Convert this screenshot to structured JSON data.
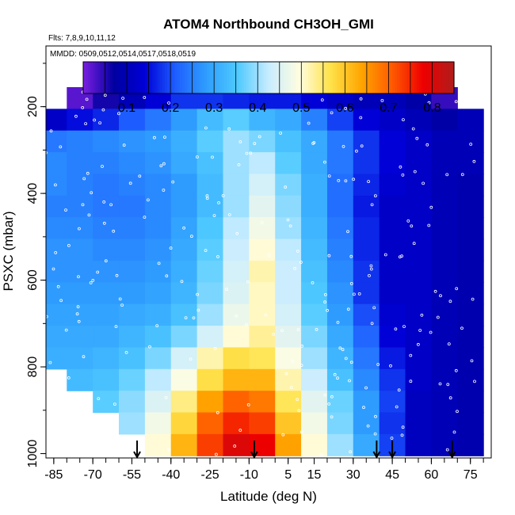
{
  "chart_data": {
    "type": "heatmap",
    "title": "ATOM4 Northbound CH3OH_GMI",
    "flights_text": "Flts: 7,8,9,10,11,12",
    "mmdd_text": "MMDD: 0509,0512,0514,0517,0518,0519",
    "xlabel": "Latitude (deg N)",
    "ylabel": "PSXC (mbar)",
    "x_ticks": [
      -85,
      -70,
      -55,
      -40,
      -25,
      -10,
      5,
      15,
      30,
      45,
      60,
      75
    ],
    "x_tick_labels": [
      "-85",
      "-70",
      "-55",
      "-40",
      "-25",
      "-10",
      "5",
      "15",
      "30",
      "45",
      "60",
      "75"
    ],
    "y_ticks": [
      200,
      400,
      600,
      800,
      1000
    ],
    "y_tick_labels": [
      "200",
      "400",
      "600",
      "800",
      "1000"
    ],
    "xlim": [
      -88,
      83
    ],
    "ylim": [
      1010,
      60
    ],
    "colorbar": {
      "range": [
        0.0,
        0.85
      ],
      "ticks": [
        0.1,
        0.2,
        0.3,
        0.4,
        0.5,
        0.6,
        0.7,
        0.8
      ],
      "tick_labels": [
        "0.1",
        "0.2",
        "0.3",
        "0.4",
        "0.5",
        "0.6",
        "0.7",
        "0.8"
      ],
      "colors": [
        "#7b1fe0",
        "#0000a0",
        "#0000d8",
        "#1e5fff",
        "#2f9fff",
        "#4fcaff",
        "#c8ecff",
        "#fffde0",
        "#ffe24a",
        "#ffa500",
        "#ff5a00",
        "#ee0000",
        "#b01c1c"
      ]
    },
    "pressure_levels": [
      180,
      230,
      280,
      330,
      380,
      430,
      480,
      530,
      580,
      630,
      680,
      730,
      780,
      830,
      880,
      930,
      980
    ],
    "latitudes": [
      -85,
      -75,
      -65,
      -55,
      -45,
      -35,
      -25,
      -15,
      -5,
      5,
      15,
      25,
      35,
      45,
      55,
      65,
      75
    ],
    "values": [
      [
        null,
        0.02,
        0.06,
        0.1,
        0.14,
        0.18,
        0.18,
        0.17,
        0.16,
        0.16,
        0.14,
        0.12,
        0.1,
        0.1,
        0.08,
        0.04,
        null
      ],
      [
        0.12,
        0.15,
        0.17,
        0.21,
        0.24,
        0.28,
        0.33,
        0.36,
        0.32,
        0.3,
        0.25,
        0.19,
        0.14,
        0.12,
        0.1,
        0.08,
        0.1
      ],
      [
        0.24,
        0.25,
        0.26,
        0.27,
        0.28,
        0.31,
        0.36,
        0.4,
        0.38,
        0.34,
        0.3,
        0.24,
        0.18,
        0.14,
        0.12,
        0.1,
        0.1
      ],
      [
        0.26,
        0.25,
        0.25,
        0.26,
        0.27,
        0.3,
        0.34,
        0.4,
        0.42,
        0.36,
        0.3,
        0.24,
        0.18,
        0.14,
        0.12,
        0.1,
        0.1
      ],
      [
        0.26,
        0.25,
        0.24,
        0.25,
        0.26,
        0.28,
        0.33,
        0.4,
        0.44,
        0.38,
        0.31,
        0.23,
        0.17,
        0.13,
        0.12,
        0.1,
        0.09
      ],
      [
        0.25,
        0.25,
        0.24,
        0.24,
        0.26,
        0.28,
        0.33,
        0.4,
        0.46,
        0.39,
        0.31,
        0.23,
        0.16,
        0.12,
        0.12,
        0.1,
        0.09
      ],
      [
        0.26,
        0.26,
        0.25,
        0.25,
        0.26,
        0.29,
        0.35,
        0.42,
        0.48,
        0.4,
        0.32,
        0.24,
        0.17,
        0.12,
        0.12,
        0.1,
        0.09
      ],
      [
        0.27,
        0.27,
        0.26,
        0.26,
        0.27,
        0.3,
        0.36,
        0.43,
        0.5,
        0.42,
        0.33,
        0.25,
        0.17,
        0.12,
        0.12,
        0.1,
        0.09
      ],
      [
        0.27,
        0.27,
        0.27,
        0.27,
        0.28,
        0.31,
        0.37,
        0.44,
        0.52,
        0.43,
        0.34,
        0.26,
        0.18,
        0.12,
        0.12,
        0.1,
        0.09
      ],
      [
        0.28,
        0.28,
        0.28,
        0.28,
        0.29,
        0.32,
        0.38,
        0.45,
        0.51,
        0.43,
        0.35,
        0.27,
        0.18,
        0.12,
        0.12,
        0.1,
        0.09
      ],
      [
        0.29,
        0.29,
        0.29,
        0.3,
        0.31,
        0.34,
        0.4,
        0.47,
        0.51,
        0.44,
        0.36,
        0.28,
        0.2,
        0.13,
        0.12,
        0.1,
        0.09
      ],
      [
        0.3,
        0.3,
        0.3,
        0.32,
        0.34,
        0.38,
        0.44,
        0.5,
        0.53,
        0.46,
        0.38,
        0.3,
        0.22,
        0.14,
        0.12,
        0.1,
        0.09
      ],
      [
        0.31,
        0.31,
        0.32,
        0.34,
        0.38,
        0.44,
        0.52,
        0.57,
        0.56,
        0.49,
        0.4,
        0.32,
        0.24,
        0.16,
        0.12,
        0.1,
        0.09
      ],
      [
        null,
        0.33,
        0.34,
        0.37,
        0.42,
        0.49,
        0.57,
        0.62,
        0.62,
        0.52,
        0.43,
        0.34,
        0.26,
        0.18,
        0.12,
        0.1,
        0.09
      ],
      [
        null,
        null,
        0.36,
        0.39,
        0.45,
        0.54,
        0.64,
        0.7,
        0.68,
        0.56,
        0.46,
        0.37,
        0.28,
        0.19,
        0.11,
        0.1,
        0.09
      ],
      [
        null,
        null,
        null,
        0.4,
        0.48,
        0.58,
        0.7,
        0.75,
        0.73,
        0.6,
        0.48,
        0.38,
        0.28,
        0.18,
        0.11,
        0.1,
        0.09
      ],
      [
        null,
        null,
        null,
        null,
        0.5,
        0.62,
        0.73,
        0.8,
        0.78,
        0.64,
        0.5,
        0.4,
        0.3,
        0.19,
        0.11,
        0.1,
        0.09
      ]
    ],
    "profile_arrows_lat": [
      -53,
      -8,
      39,
      45,
      68
    ]
  }
}
